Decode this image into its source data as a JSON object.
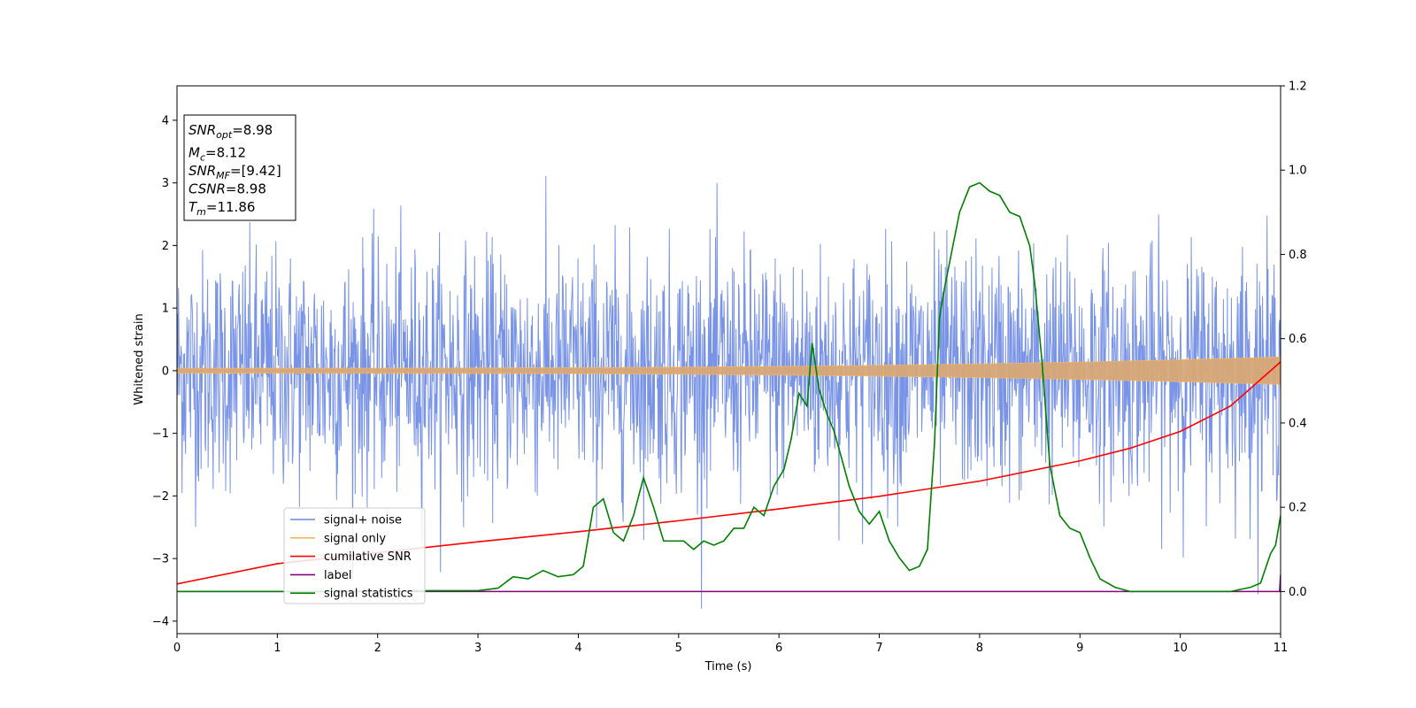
{
  "chart_data": {
    "type": "line",
    "xlabel": "Time (s)",
    "ylabel": "Whitened strain",
    "xlim": [
      0,
      11
    ],
    "ylim_left": [
      -4.2,
      4.55
    ],
    "ylim_right": [
      -0.1,
      1.2
    ],
    "xticks": [
      "0",
      "1",
      "2",
      "3",
      "4",
      "5",
      "6",
      "7",
      "8",
      "9",
      "10",
      "11"
    ],
    "yticks_left": [
      "−4",
      "−3",
      "−2",
      "−1",
      "0",
      "1",
      "2",
      "3",
      "4"
    ],
    "yticks_right": [
      "0.0",
      "0.2",
      "0.4",
      "0.6",
      "0.8",
      "1.0",
      "1.2"
    ],
    "grid": false,
    "legend_position": "lower-left",
    "legend": [
      {
        "label": "signal+ noise",
        "color": "#6a88e3"
      },
      {
        "label": "signal only",
        "color": "#f5b661"
      },
      {
        "label": "cumilative SNR",
        "color": "#ff0000"
      },
      {
        "label": "label",
        "color": "#800080"
      },
      {
        "label": "signal statistics",
        "color": "#008000"
      }
    ],
    "info_box": {
      "lines": [
        {
          "main": "SNR",
          "sub": "opt",
          "value": "=8.98"
        },
        {
          "main": "M",
          "sub": "c",
          "value": "=8.12"
        },
        {
          "main": "SNR",
          "sub": "MF",
          "value": "=[9.42]"
        },
        {
          "main": "CSNR",
          "sub": "",
          "value": "=8.98"
        },
        {
          "main": "T",
          "sub": "m",
          "value": "=11.86"
        }
      ]
    },
    "series": [
      {
        "name": "signal+ noise",
        "axis": "left",
        "color": "#6a88e3",
        "noise_std": 0.95,
        "duration": 11,
        "n_samples": 2200
      },
      {
        "name": "signal only",
        "axis": "left",
        "color": "#f5b661",
        "amplitude_start": 0.04,
        "amplitude_end": 0.22
      },
      {
        "name": "cumilative SNR",
        "axis": "right",
        "color": "#ff0000",
        "x": [
          0,
          1,
          2,
          3,
          4,
          5,
          6,
          7,
          8,
          9,
          9.5,
          10,
          10.5,
          11
        ],
        "y": [
          0.018,
          0.066,
          0.092,
          0.118,
          0.142,
          0.168,
          0.196,
          0.226,
          0.262,
          0.31,
          0.34,
          0.38,
          0.44,
          0.545
        ]
      },
      {
        "name": "label",
        "axis": "right",
        "color": "#800080",
        "x": [
          0,
          10.99,
          11
        ],
        "y": [
          0.0,
          0.0,
          0.04
        ]
      },
      {
        "name": "signal statistics",
        "axis": "right",
        "color": "#008000",
        "x": [
          0,
          1,
          2,
          2.5,
          3,
          3.2,
          3.35,
          3.5,
          3.65,
          3.8,
          3.95,
          4.05,
          4.15,
          4.25,
          4.35,
          4.45,
          4.55,
          4.65,
          4.75,
          4.85,
          4.95,
          5.05,
          5.15,
          5.25,
          5.35,
          5.45,
          5.55,
          5.65,
          5.75,
          5.85,
          5.95,
          6.05,
          6.12,
          6.2,
          6.28,
          6.33,
          6.4,
          6.48,
          6.55,
          6.62,
          6.7,
          6.8,
          6.9,
          7.0,
          7.1,
          7.2,
          7.3,
          7.4,
          7.48,
          7.55,
          7.6,
          7.65,
          7.7,
          7.8,
          7.9,
          8.0,
          8.1,
          8.2,
          8.3,
          8.4,
          8.5,
          8.55,
          8.62,
          8.7,
          8.8,
          8.9,
          9.0,
          9.1,
          9.2,
          9.35,
          9.5,
          10,
          10.5,
          10.7,
          10.8,
          10.9,
          10.95,
          11
        ],
        "y": [
          0.0,
          0.0,
          0.0,
          0.002,
          0.002,
          0.008,
          0.035,
          0.03,
          0.05,
          0.035,
          0.04,
          0.06,
          0.2,
          0.22,
          0.14,
          0.12,
          0.18,
          0.27,
          0.2,
          0.12,
          0.12,
          0.12,
          0.1,
          0.12,
          0.11,
          0.12,
          0.15,
          0.15,
          0.2,
          0.18,
          0.25,
          0.29,
          0.36,
          0.47,
          0.44,
          0.59,
          0.48,
          0.42,
          0.38,
          0.32,
          0.25,
          0.19,
          0.16,
          0.19,
          0.12,
          0.08,
          0.05,
          0.06,
          0.1,
          0.35,
          0.65,
          0.72,
          0.78,
          0.9,
          0.96,
          0.97,
          0.95,
          0.94,
          0.9,
          0.89,
          0.82,
          0.73,
          0.55,
          0.3,
          0.18,
          0.15,
          0.14,
          0.08,
          0.03,
          0.01,
          0.0,
          0.0,
          0.0,
          0.01,
          0.02,
          0.09,
          0.11,
          0.18
        ]
      }
    ]
  }
}
